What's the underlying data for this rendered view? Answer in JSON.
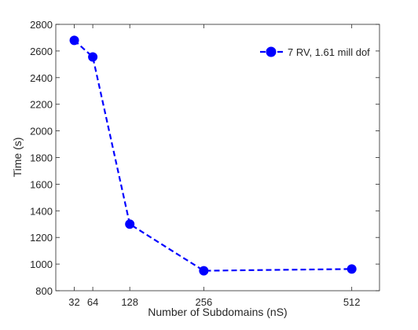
{
  "chart_data": {
    "type": "line",
    "title": "",
    "xlabel": "Number of Subdomains (nS)",
    "ylabel": "Time (s)",
    "xlim": [
      0,
      560
    ],
    "ylim": [
      800,
      2800
    ],
    "xticks": [
      32,
      64,
      128,
      256,
      512
    ],
    "yticks": [
      800,
      1000,
      1200,
      1400,
      1600,
      1800,
      2000,
      2200,
      2400,
      2600,
      2800
    ],
    "grid": false,
    "legend_position": "top-right",
    "series": [
      {
        "name": "7 RV, 1.61 mill dof",
        "color": "#0000ff",
        "line_style": "dashed",
        "marker": "circle",
        "x": [
          32,
          64,
          128,
          256,
          512
        ],
        "y": [
          2680,
          2555,
          1300,
          950,
          963
        ]
      }
    ]
  }
}
